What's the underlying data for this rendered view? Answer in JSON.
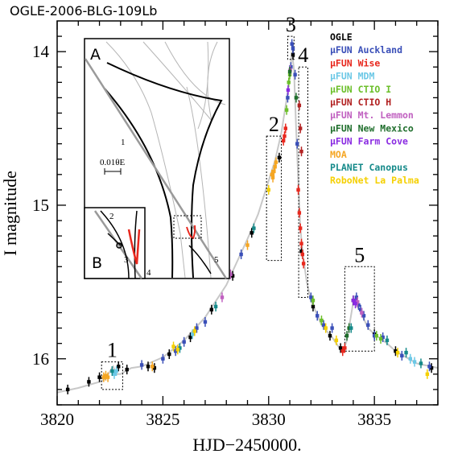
{
  "title": "OGLE-2006-BLG-109Lb",
  "chart_data": {
    "type": "scatter",
    "xlabel": "HJD−2450000.",
    "ylabel": "I magnitude",
    "xlim": [
      3820,
      3838
    ],
    "ylim": [
      16.3,
      13.8
    ],
    "y_inverted": true,
    "xticks": [
      "3820",
      "3825",
      "3830",
      "3835"
    ],
    "yticks": [
      "14",
      "15",
      "16"
    ],
    "legend_position": "top-right",
    "legend": [
      {
        "label": "OGLE",
        "color": "#000000"
      },
      {
        "label": "μFUN Auckland",
        "color": "#3a4fb8"
      },
      {
        "label": "μFUN Wise",
        "color": "#e8281e"
      },
      {
        "label": "μFUN MDM",
        "color": "#6cc8e6"
      },
      {
        "label": "μFUN CTIO I",
        "color": "#6cbf2a"
      },
      {
        "label": "μFUN CTIO H",
        "color": "#b22222"
      },
      {
        "label": "μFUN Mt. Lemmon",
        "color": "#c060c0"
      },
      {
        "label": "μFUN New Mexico",
        "color": "#1f6e2c"
      },
      {
        "label": "μFUN Farm Cove",
        "color": "#8a2be2"
      },
      {
        "label": "MOA",
        "color": "#f5a623"
      },
      {
        "label": "PLANET Canopus",
        "color": "#168a8a"
      },
      {
        "label": "RoboNet La Palma",
        "color": "#f5d000"
      }
    ],
    "model_curve": {
      "x": [
        3820.0,
        3821.0,
        3822.0,
        3822.3,
        3822.5,
        3822.65,
        3822.8,
        3823.0,
        3823.5,
        3824.0,
        3825.0,
        3826.0,
        3827.0,
        3828.0,
        3829.0,
        3829.5,
        3830.0,
        3830.3,
        3830.6,
        3830.85,
        3831.0,
        3831.1,
        3831.2,
        3831.3,
        3831.42,
        3831.5,
        3831.6,
        3831.7,
        3831.8,
        3832.0,
        3832.5,
        3833.0,
        3833.3,
        3833.5,
        3833.7,
        3834.0,
        3834.3,
        3834.5,
        3834.7,
        3835.0,
        3835.3,
        3835.6,
        3836.0,
        3837.0,
        3838.0
      ],
      "y": [
        16.22,
        16.19,
        16.15,
        16.13,
        16.08,
        16.05,
        16.1,
        16.1,
        16.06,
        16.05,
        15.99,
        15.88,
        15.73,
        15.52,
        15.22,
        15.06,
        14.84,
        14.71,
        14.53,
        14.31,
        14.15,
        14.0,
        14.12,
        14.5,
        14.9,
        15.15,
        15.3,
        15.4,
        15.5,
        15.62,
        15.78,
        15.86,
        15.92,
        15.96,
        15.88,
        15.63,
        15.68,
        15.74,
        15.8,
        15.84,
        15.87,
        15.9,
        15.95,
        16.03,
        16.06
      ]
    },
    "series": [
      {
        "name": "OGLE",
        "color": "#000000",
        "points": [
          [
            3820.5,
            16.2
          ],
          [
            3821.5,
            16.15
          ],
          [
            3822.0,
            16.12
          ],
          [
            3822.9,
            16.05
          ],
          [
            3823.3,
            16.07
          ],
          [
            3824.3,
            16.05
          ],
          [
            3824.6,
            16.06
          ],
          [
            3825.3,
            15.97
          ],
          [
            3826.3,
            15.86
          ],
          [
            3827.3,
            15.68
          ],
          [
            3828.3,
            15.46
          ],
          [
            3829.2,
            15.18
          ],
          [
            3830.5,
            14.69
          ],
          [
            3831.15,
            14.02
          ],
          [
            3831.55,
            15.3
          ],
          [
            3832.1,
            15.66
          ],
          [
            3832.9,
            15.85
          ],
          [
            3833.4,
            15.93
          ],
          [
            3834.0,
            15.62
          ],
          [
            3835.0,
            15.84
          ],
          [
            3836.0,
            15.95
          ],
          [
            3837.7,
            16.06
          ]
        ]
      },
      {
        "name": "μFUN Auckland",
        "color": "#3a4fb8",
        "points": [
          [
            3824.0,
            16.04
          ],
          [
            3825.0,
            16.0
          ],
          [
            3825.6,
            15.95
          ],
          [
            3826.0,
            15.89
          ],
          [
            3826.6,
            15.8
          ],
          [
            3827.0,
            15.76
          ],
          [
            3828.7,
            15.32
          ],
          [
            3830.9,
            14.3
          ],
          [
            3831.05,
            14.1
          ],
          [
            3831.1,
            13.95
          ],
          [
            3831.15,
            13.98
          ],
          [
            3831.25,
            14.15
          ],
          [
            3831.35,
            14.6
          ],
          [
            3832.0,
            15.6
          ],
          [
            3832.3,
            15.72
          ],
          [
            3832.6,
            15.78
          ],
          [
            3833.0,
            15.8
          ],
          [
            3834.15,
            15.6
          ],
          [
            3834.25,
            15.65
          ],
          [
            3834.35,
            15.68
          ],
          [
            3834.5,
            15.72
          ],
          [
            3834.7,
            15.78
          ],
          [
            3835.0,
            15.85
          ],
          [
            3835.4,
            15.86
          ],
          [
            3836.3,
            15.98
          ],
          [
            3837.6,
            16.05
          ]
        ]
      },
      {
        "name": "μFUN Wise",
        "color": "#e8281e",
        "points": [
          [
            3830.7,
            14.58
          ],
          [
            3830.75,
            14.55
          ],
          [
            3830.8,
            14.5
          ],
          [
            3831.4,
            14.9
          ],
          [
            3831.45,
            15.05
          ],
          [
            3831.5,
            15.15
          ],
          [
            3831.55,
            15.25
          ],
          [
            3831.6,
            15.32
          ],
          [
            3831.65,
            15.38
          ],
          [
            3833.5,
            15.95
          ],
          [
            3833.6,
            15.93
          ]
        ]
      },
      {
        "name": "μFUN MDM",
        "color": "#6cc8e6",
        "points": [
          [
            3822.7,
            16.1
          ],
          [
            3822.8,
            16.08
          ],
          [
            3826.4,
            15.84
          ],
          [
            3836.7,
            16.0
          ],
          [
            3836.9,
            16.02
          ]
        ]
      },
      {
        "name": "μFUN CTIO I",
        "color": "#6cbf2a",
        "points": [
          [
            3830.85,
            14.38
          ],
          [
            3830.95,
            14.2
          ],
          [
            3831.0,
            14.15
          ],
          [
            3832.1,
            15.62
          ],
          [
            3832.5,
            15.75
          ],
          [
            3835.1,
            15.85
          ],
          [
            3835.3,
            15.87
          ]
        ]
      },
      {
        "name": "μFUN CTIO H",
        "color": "#b22222",
        "points": [
          [
            3831.45,
            14.35
          ],
          [
            3831.5,
            14.5
          ],
          [
            3831.55,
            14.65
          ]
        ]
      },
      {
        "name": "μFUN Mt. Lemmon",
        "color": "#c060c0",
        "points": [
          [
            3827.8,
            15.6
          ],
          [
            3828.2,
            15.45
          ],
          [
            3831.02,
            14.12
          ],
          [
            3834.2,
            15.63
          ],
          [
            3834.4,
            15.7
          ]
        ]
      },
      {
        "name": "μFUN New Mexico",
        "color": "#1f6e2c",
        "points": [
          [
            3831.0,
            14.13
          ],
          [
            3831.3,
            14.3
          ],
          [
            3833.7,
            15.85
          ],
          [
            3833.8,
            15.8
          ]
        ]
      },
      {
        "name": "μFUN Farm Cove",
        "color": "#8a2be2",
        "points": [
          [
            3830.92,
            14.25
          ],
          [
            3834.0,
            15.62
          ],
          [
            3834.1,
            15.64
          ]
        ]
      },
      {
        "name": "MOA",
        "color": "#f5a623",
        "points": [
          [
            3822.2,
            16.12
          ],
          [
            3822.3,
            16.11
          ],
          [
            3822.4,
            16.12
          ],
          [
            3824.5,
            16.05
          ],
          [
            3829.0,
            15.26
          ],
          [
            3830.15,
            14.8
          ],
          [
            3830.2,
            14.82
          ],
          [
            3830.25,
            14.78
          ],
          [
            3830.3,
            14.75
          ],
          [
            3830.35,
            14.72
          ]
        ]
      },
      {
        "name": "PLANET Canopus",
        "color": "#168a8a",
        "points": [
          [
            3822.6,
            16.08
          ],
          [
            3825.8,
            15.93
          ],
          [
            3827.5,
            15.66
          ],
          [
            3829.3,
            15.15
          ],
          [
            3833.9,
            15.8
          ],
          [
            3835.6,
            15.88
          ],
          [
            3836.5,
            15.96
          ],
          [
            3837.2,
            16.03
          ]
        ]
      },
      {
        "name": "RoboNet La Palma",
        "color": "#f5d000",
        "points": [
          [
            3825.5,
            15.92
          ],
          [
            3825.7,
            15.94
          ],
          [
            3826.5,
            15.82
          ],
          [
            3830.0,
            14.9
          ],
          [
            3832.7,
            15.8
          ],
          [
            3833.2,
            15.88
          ],
          [
            3836.1,
            15.96
          ],
          [
            3837.5,
            16.1
          ]
        ]
      }
    ],
    "annotations": [
      {
        "label": "1",
        "x_range": [
          3822.1,
          3823.1
        ],
        "y_range": [
          16.02,
          16.2
        ]
      },
      {
        "label": "2",
        "x_range": [
          3829.9,
          3830.6
        ],
        "y_range": [
          14.55,
          15.36
        ]
      },
      {
        "label": "3",
        "x_range": [
          3830.9,
          3831.2
        ],
        "y_range": [
          13.9,
          14.05
        ]
      },
      {
        "label": "4",
        "x_range": [
          3831.42,
          3831.85
        ],
        "y_range": [
          14.1,
          15.6
        ]
      },
      {
        "label": "5",
        "x_range": [
          3833.6,
          3835.0
        ],
        "y_range": [
          15.4,
          15.95
        ]
      }
    ]
  },
  "inset": {
    "label_a": "A",
    "label_b": "B",
    "scale_label": "0.01θE",
    "point_labels": [
      "1",
      "2",
      "3",
      "4",
      "5"
    ]
  }
}
